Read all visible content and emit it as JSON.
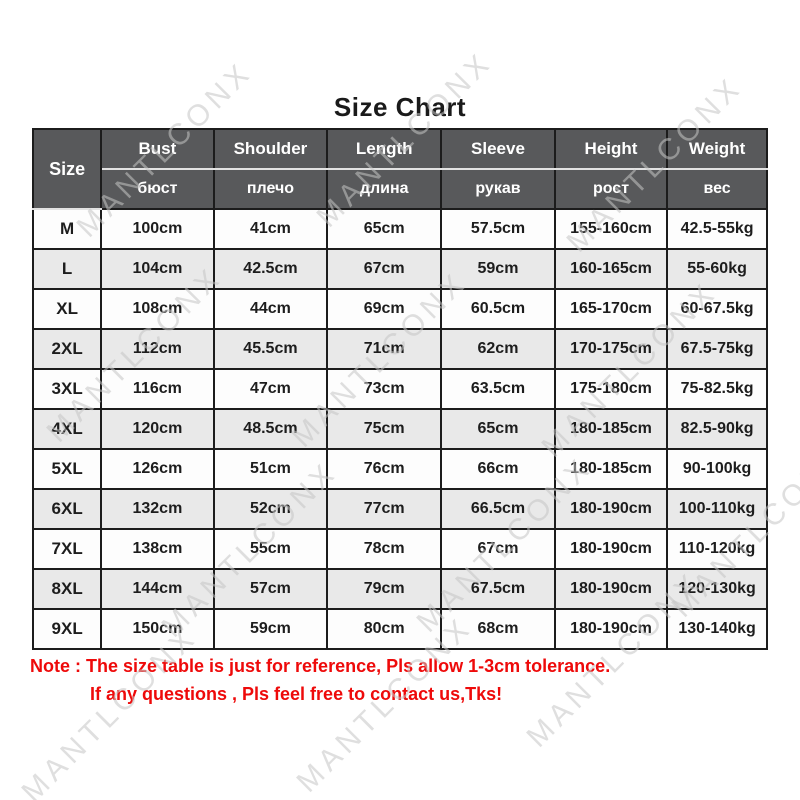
{
  "page": {
    "title": "Size Chart",
    "watermark_text": "MANTLCONX",
    "note_line1": "Note : The size table is just for reference, Pls allow 1-3cm tolerance.",
    "note_line2": "If any questions , Pls feel free to contact us,Tks!"
  },
  "colors": {
    "header_bg": "#58595b",
    "header_text": "#ffffff",
    "row_bg": "#fdfdfd",
    "row_alt_bg": "#e9e9e9",
    "border": "#1c1c1c",
    "title_text": "#1a1a1a",
    "note_red": "#ee0a0a",
    "watermark_gray": "#c6c6c6"
  },
  "table": {
    "size_header": "Size",
    "columns": [
      {
        "en": "Bust",
        "ru": "бюст"
      },
      {
        "en": "Shoulder",
        "ru": "плечо"
      },
      {
        "en": "Length",
        "ru": "длина"
      },
      {
        "en": "Sleeve",
        "ru": "рукав"
      },
      {
        "en": "Height",
        "ru": "рост"
      },
      {
        "en": "Weight",
        "ru": "вес"
      }
    ],
    "rows": [
      {
        "size": "M",
        "values": [
          "100cm",
          "41cm",
          "65cm",
          "57.5cm",
          "155-160cm",
          "42.5-55kg"
        ]
      },
      {
        "size": "L",
        "values": [
          "104cm",
          "42.5cm",
          "67cm",
          "59cm",
          "160-165cm",
          "55-60kg"
        ]
      },
      {
        "size": "XL",
        "values": [
          "108cm",
          "44cm",
          "69cm",
          "60.5cm",
          "165-170cm",
          "60-67.5kg"
        ]
      },
      {
        "size": "2XL",
        "values": [
          "112cm",
          "45.5cm",
          "71cm",
          "62cm",
          "170-175cm",
          "67.5-75kg"
        ]
      },
      {
        "size": "3XL",
        "values": [
          "116cm",
          "47cm",
          "73cm",
          "63.5cm",
          "175-180cm",
          "75-82.5kg"
        ]
      },
      {
        "size": "4XL",
        "values": [
          "120cm",
          "48.5cm",
          "75cm",
          "65cm",
          "180-185cm",
          "82.5-90kg"
        ]
      },
      {
        "size": "5XL",
        "values": [
          "126cm",
          "51cm",
          "76cm",
          "66cm",
          "180-185cm",
          "90-100kg"
        ]
      },
      {
        "size": "6XL",
        "values": [
          "132cm",
          "52cm",
          "77cm",
          "66.5cm",
          "180-190cm",
          "100-110kg"
        ]
      },
      {
        "size": "7XL",
        "values": [
          "138cm",
          "55cm",
          "78cm",
          "67cm",
          "180-190cm",
          "110-120kg"
        ]
      },
      {
        "size": "8XL",
        "values": [
          "144cm",
          "57cm",
          "79cm",
          "67.5cm",
          "180-190cm",
          "120-130kg"
        ]
      },
      {
        "size": "9XL",
        "values": [
          "150cm",
          "59cm",
          "80cm",
          "68cm",
          "180-190cm",
          "130-140kg"
        ]
      }
    ]
  }
}
